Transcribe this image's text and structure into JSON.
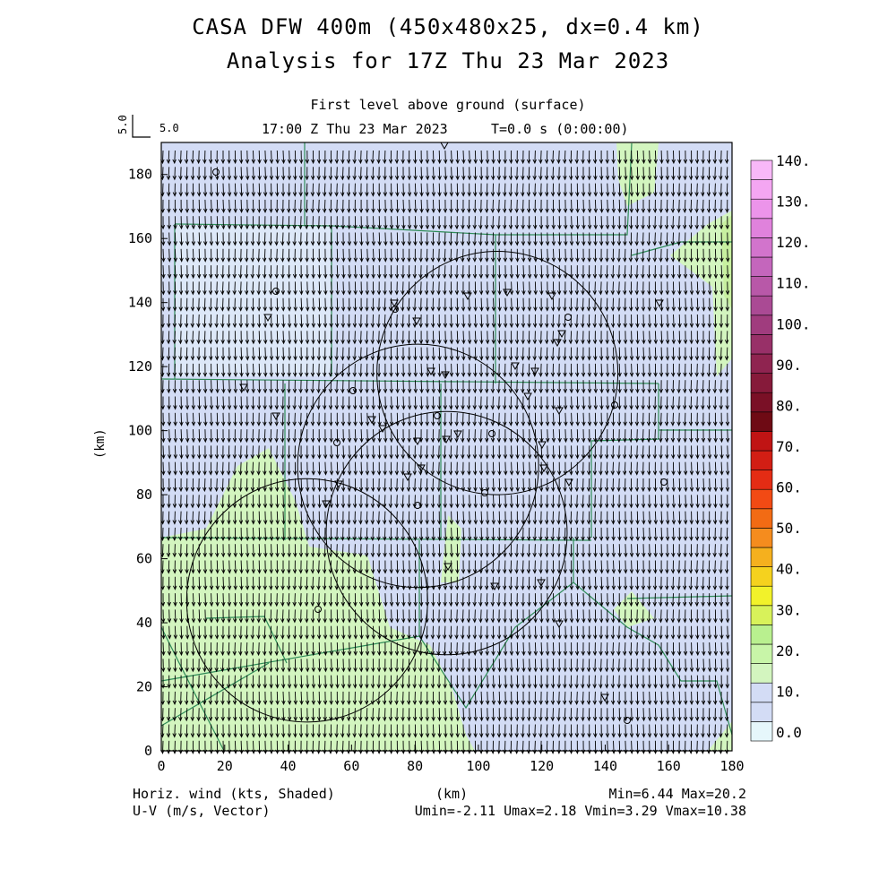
{
  "title": {
    "line1": "CASA DFW 400m (450x480x25, dx=0.4 km)",
    "line2": "Analysis for 17Z Thu 23 Mar 2023"
  },
  "subtitle": {
    "level": "First level above ground (surface)",
    "time": "17:00 Z Thu 23 Mar 2023",
    "tstep": "T=0.0 s (0:00:00)"
  },
  "vector_key": {
    "vertical": "5.0",
    "horizontal": "5.0"
  },
  "footer": {
    "left1": "Horiz. wind (kts, Shaded)",
    "left2": "U-V (m/s, Vector)",
    "center": "(km)",
    "right1": "Min=6.44 Max=20.2",
    "right2": "Umin=-2.11 Umax=2.18 Vmin=3.29 Vmax=10.38"
  },
  "colors": {
    "c0": "#e6f7fb",
    "c10": "#d3dcf5",
    "c20": "#d3f5bf",
    "c25": "#b9f08f",
    "county_lines": "#2e8b57",
    "frame": "#000000"
  },
  "chart_data": {
    "type": "heatmap",
    "xlabel": "",
    "ylabel": "(km)",
    "xlim": [
      0,
      180
    ],
    "ylim": [
      0,
      190
    ],
    "x_ticks": [
      "0",
      "20",
      "40",
      "60",
      "80",
      "100",
      "120",
      "140",
      "160",
      "180"
    ],
    "y_ticks": [
      "0",
      "20",
      "40",
      "60",
      "80",
      "100",
      "120",
      "140",
      "160",
      "180"
    ],
    "colorbar": {
      "labels": [
        "0.0",
        "10.",
        "20.",
        "30.",
        "40.",
        "50.",
        "60.",
        "70.",
        "80.",
        "90.",
        "100.",
        "110.",
        "120.",
        "130.",
        "140."
      ],
      "colors": [
        "#e6f7fb",
        "#d3dcf5",
        "#d3dcf5",
        "#d3f5bf",
        "#c8f5a8",
        "#b9f08f",
        "#d8f25a",
        "#f2f22a",
        "#f5d21e",
        "#f5b01e",
        "#f58c1e",
        "#f26b14",
        "#f24a14",
        "#e42c14",
        "#d21e14",
        "#c01414",
        "#6e0a14",
        "#7a1026",
        "#861a3a",
        "#8f2450",
        "#983068",
        "#a03c7e",
        "#aa4a94",
        "#b858a8",
        "#c466bc",
        "#d274cc",
        "#e082dc",
        "#ec94ea",
        "#f4a6f2",
        "#f8b8f8"
      ]
    },
    "wind": {
      "u_min": -2.11,
      "u_max": 2.18,
      "v_min": 3.29,
      "v_max": 10.38,
      "speed_min": 6.44,
      "speed_max": 20.2
    },
    "radar_rings_km": [
      {
        "cx": 106,
        "cy": 118,
        "r": 38
      },
      {
        "cx": 81,
        "cy": 89,
        "r": 38
      },
      {
        "cx": 90,
        "cy": 68,
        "r": 38
      },
      {
        "cx": 46,
        "cy": 47,
        "r": 38
      }
    ]
  }
}
